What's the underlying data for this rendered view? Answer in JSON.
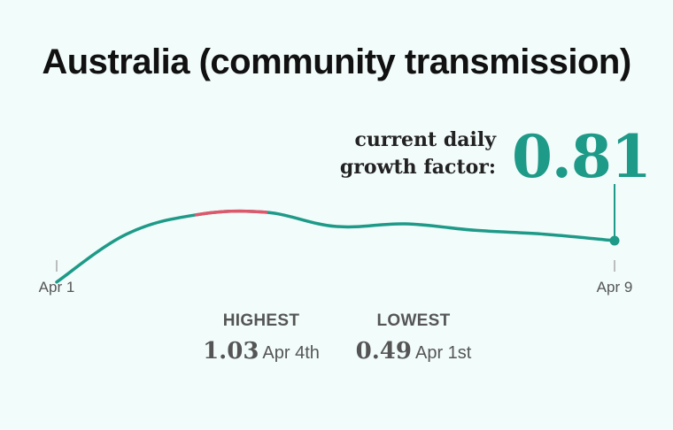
{
  "title": "Australia (community transmission)",
  "current": {
    "label_line1": "current daily",
    "label_line2": "growth factor:",
    "value": "0.81"
  },
  "stats": {
    "highest": {
      "label": "HIGHEST",
      "value": "1.03",
      "date": "Apr 4th"
    },
    "lowest": {
      "label": "LOWEST",
      "value": "0.49",
      "date": "Apr 1st"
    }
  },
  "colors": {
    "line": "#1e9a88",
    "highlight": "#e0566b",
    "background": "#f2fcfb"
  },
  "chart_data": {
    "type": "line",
    "x_tick_labels": [
      "Apr 1",
      "Apr 9"
    ],
    "x": [
      1,
      2,
      3,
      4,
      5,
      6,
      7,
      8,
      9
    ],
    "values": [
      0.49,
      0.86,
      1.01,
      1.03,
      0.92,
      0.94,
      0.89,
      0.86,
      0.81
    ],
    "highlight_range": [
      3,
      4
    ],
    "ylim": [
      0.4,
      1.2
    ],
    "grid": false
  }
}
